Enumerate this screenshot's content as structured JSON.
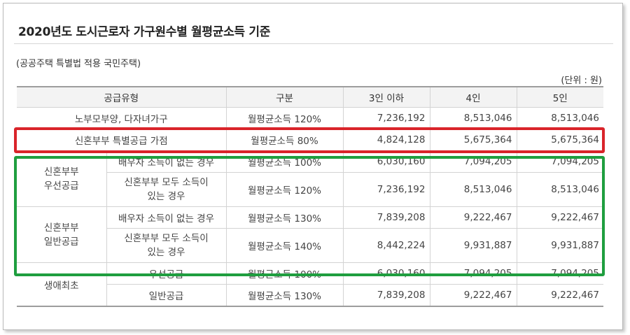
{
  "title": "2020년도 도시근로자 가구원수별 월평균소득 기준",
  "subtitle": "(공공주택 특별법 적용 국민주택)",
  "unit": "(단위 : 원)",
  "columns": [
    "공급유형",
    "구분",
    "3인 이하",
    "4인",
    "5인"
  ],
  "rows": {
    "r0": {
      "type": "노부모부양, 다자녀가구",
      "basis": "월평균소득 120%",
      "v3": "7,236,192",
      "v4": "8,513,046",
      "v5": "8,513,046"
    },
    "r1": {
      "type": "신혼부부 특별공급 가점",
      "basis": "월평균소득 80%",
      "v3": "4,824,128",
      "v4": "5,675,364",
      "v5": "5,675,364"
    },
    "g1": {
      "label1": "신혼부부",
      "label2": "우선공급"
    },
    "r2": {
      "sub": "배우자 소득이 없는 경우",
      "basis": "월평균소득 100%",
      "v3": "6,030,160",
      "v4": "7,094,205",
      "v5": "7,094,205"
    },
    "r3": {
      "sub1": "신혼부부 모두 소득이",
      "sub2": "있는 경우",
      "basis": "월평균소득 120%",
      "v3": "7,236,192",
      "v4": "8,513,046",
      "v5": "8,513,046"
    },
    "g2": {
      "label1": "신혼부부",
      "label2": "일반공급"
    },
    "r4": {
      "sub": "배우자 소득이 없는 경우",
      "basis": "월평균소득 130%",
      "v3": "7,839,208",
      "v4": "9,222,467",
      "v5": "9,222,467"
    },
    "r5": {
      "sub1": "신혼부부 모두 소득이",
      "sub2": "있는 경우",
      "basis": "월평균소득 140%",
      "v3": "8,442,224",
      "v4": "9,931,887",
      "v5": "9,931,887"
    },
    "g3": {
      "label": "생애최초"
    },
    "r6": {
      "sub": "우선공급",
      "basis": "월평균소득 100%",
      "v3": "6,030,160",
      "v4": "7,094,205",
      "v5": "7,094,205"
    },
    "r7": {
      "sub": "일반공급",
      "basis": "월평균소득 130%",
      "v3": "7,839,208",
      "v4": "9,222,467",
      "v5": "9,222,467"
    }
  },
  "highlights": {
    "red": "#d9242a",
    "green": "#1f9e3f"
  }
}
